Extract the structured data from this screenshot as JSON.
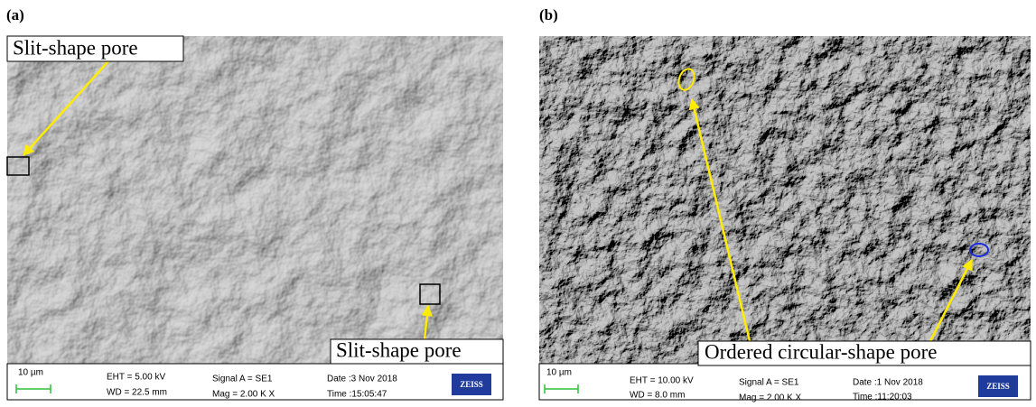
{
  "panels": [
    {
      "label": "(a)",
      "annotations": [
        "Slit-shape pore",
        "Slit-shape pore"
      ],
      "info": {
        "scale": "10 µm",
        "eht": "EHT = 5.00 kV",
        "wd": "WD = 22.5 mm",
        "signal": "Signal A = SE1",
        "mag": "Mag =  2.00 K X",
        "date": "Date :3 Nov 2018",
        "time": "Time :15:05:47",
        "logo": "ZEISS"
      }
    },
    {
      "label": "(b)",
      "annotations": [
        "Ordered circular-shape pore"
      ],
      "info": {
        "scale": "10 µm",
        "eht": "EHT = 10.00 kV",
        "wd": "WD =  8.0 mm",
        "signal": "Signal A = SE1",
        "mag": "Mag =  2.00 K X",
        "date": "Date :1 Nov 2018",
        "time": "Time :11:20:03",
        "logo": "ZEISS"
      }
    }
  ]
}
